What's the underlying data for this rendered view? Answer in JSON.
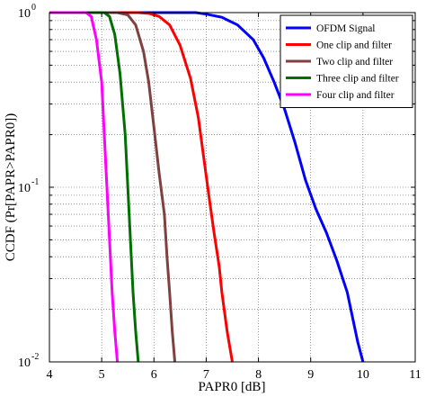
{
  "chart_data": {
    "type": "line",
    "xlabel": "PAPR0 [dB]",
    "ylabel": "CCDF (Pr[PAPR>PAPR0])",
    "xlim": [
      4,
      11
    ],
    "ylim": [
      0.01,
      1
    ],
    "yscale": "log",
    "grid": true,
    "grid_style": "dotted",
    "legend_position": "top-right",
    "x_ticks": [
      "4",
      "5",
      "6",
      "7",
      "8",
      "9",
      "10",
      "11"
    ],
    "y_ticks": [
      {
        "value": 1,
        "base": "10",
        "exp": "0"
      },
      {
        "value": 0.1,
        "base": "10",
        "exp": "-1"
      },
      {
        "value": 0.01,
        "base": "10",
        "exp": "-2"
      }
    ],
    "series": [
      {
        "name": "OFDM Signal",
        "color": "#0000ff",
        "points": [
          [
            4,
            1
          ],
          [
            6.8,
            1
          ],
          [
            7.0,
            0.98
          ],
          [
            7.3,
            0.94
          ],
          [
            7.6,
            0.85
          ],
          [
            7.9,
            0.7
          ],
          [
            8.1,
            0.55
          ],
          [
            8.3,
            0.4
          ],
          [
            8.5,
            0.28
          ],
          [
            8.7,
            0.18
          ],
          [
            8.9,
            0.11
          ],
          [
            9.1,
            0.075
          ],
          [
            9.3,
            0.055
          ],
          [
            9.5,
            0.038
          ],
          [
            9.7,
            0.025
          ],
          [
            9.8,
            0.018
          ],
          [
            9.9,
            0.013
          ],
          [
            10.0,
            0.01
          ]
        ]
      },
      {
        "name": "One clip and filter",
        "color": "#ff0000",
        "points": [
          [
            4,
            1
          ],
          [
            5.7,
            1
          ],
          [
            5.9,
            0.99
          ],
          [
            6.1,
            0.95
          ],
          [
            6.3,
            0.85
          ],
          [
            6.5,
            0.65
          ],
          [
            6.7,
            0.42
          ],
          [
            6.85,
            0.25
          ],
          [
            6.95,
            0.15
          ],
          [
            7.05,
            0.09
          ],
          [
            7.15,
            0.055
          ],
          [
            7.25,
            0.035
          ],
          [
            7.3,
            0.025
          ],
          [
            7.4,
            0.015
          ],
          [
            7.5,
            0.01
          ]
        ]
      },
      {
        "name": "Two clip and filter",
        "color": "#804040",
        "points": [
          [
            4,
            1
          ],
          [
            5.3,
            1
          ],
          [
            5.5,
            0.97
          ],
          [
            5.65,
            0.85
          ],
          [
            5.8,
            0.6
          ],
          [
            5.9,
            0.4
          ],
          [
            6.0,
            0.22
          ],
          [
            6.1,
            0.12
          ],
          [
            6.2,
            0.07
          ],
          [
            6.25,
            0.04
          ],
          [
            6.3,
            0.025
          ],
          [
            6.35,
            0.015
          ],
          [
            6.4,
            0.01
          ]
        ]
      },
      {
        "name": "Three clip and filter",
        "color": "#007000",
        "points": [
          [
            4,
            1
          ],
          [
            5.05,
            1
          ],
          [
            5.15,
            0.95
          ],
          [
            5.25,
            0.75
          ],
          [
            5.35,
            0.45
          ],
          [
            5.45,
            0.2
          ],
          [
            5.5,
            0.1
          ],
          [
            5.55,
            0.05
          ],
          [
            5.6,
            0.025
          ],
          [
            5.65,
            0.015
          ],
          [
            5.7,
            0.01
          ]
        ]
      },
      {
        "name": "Four clip and filter",
        "color": "#ff00ff",
        "points": [
          [
            4,
            1
          ],
          [
            4.7,
            1
          ],
          [
            4.8,
            0.95
          ],
          [
            4.9,
            0.7
          ],
          [
            5.0,
            0.4
          ],
          [
            5.05,
            0.2
          ],
          [
            5.1,
            0.1
          ],
          [
            5.15,
            0.05
          ],
          [
            5.2,
            0.025
          ],
          [
            5.25,
            0.015
          ],
          [
            5.3,
            0.01
          ]
        ]
      }
    ]
  }
}
